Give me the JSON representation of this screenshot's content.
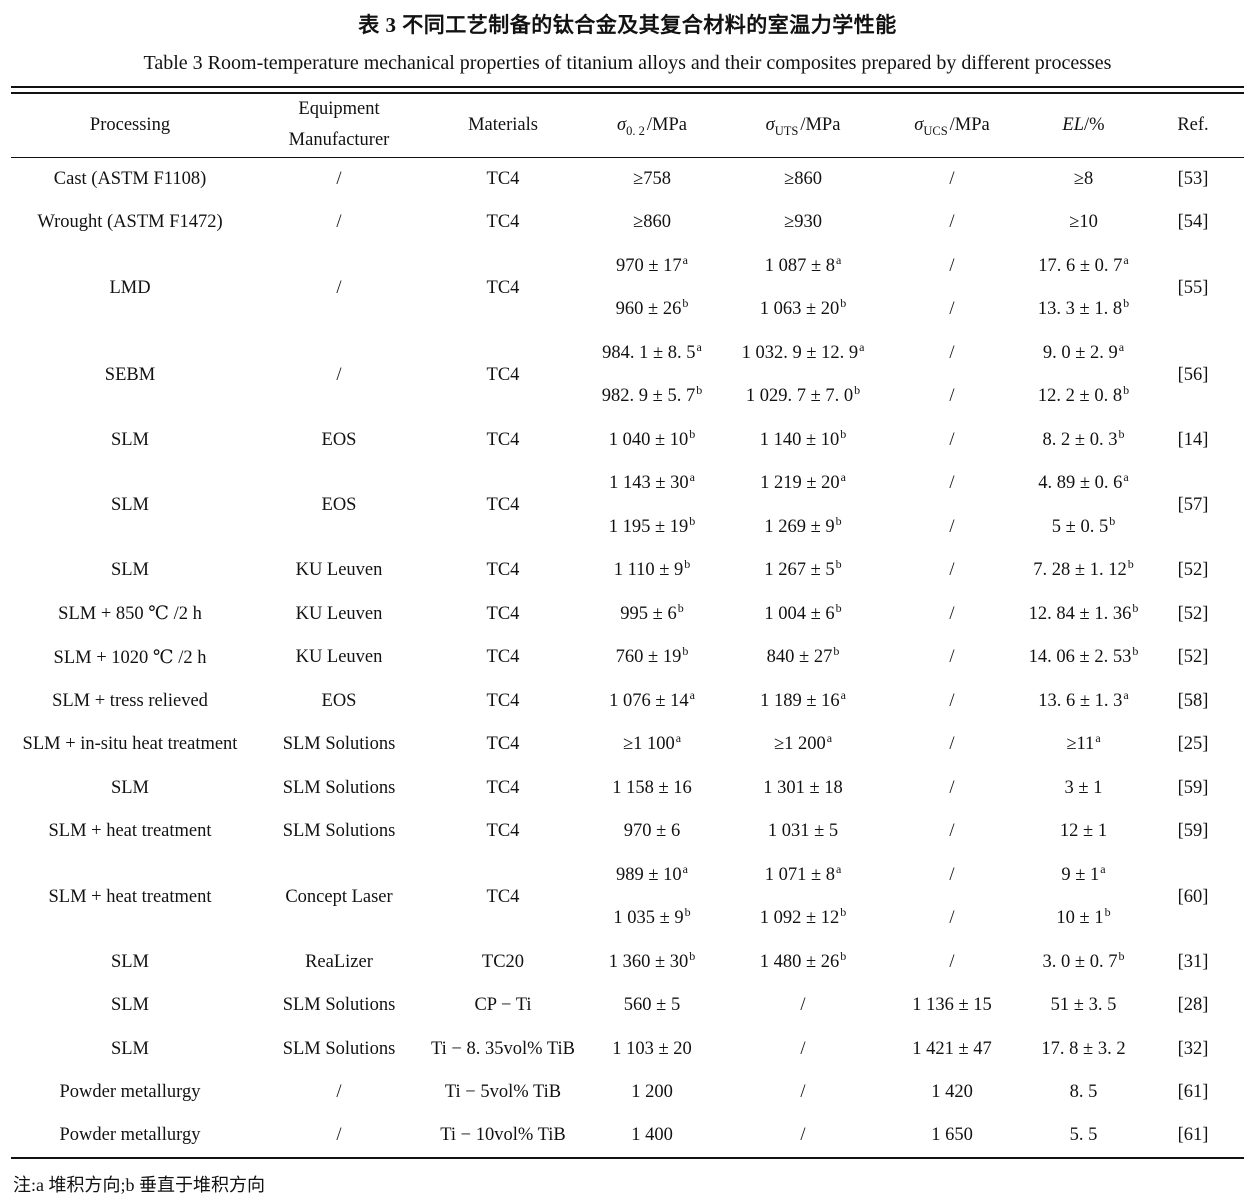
{
  "page": {
    "title_zh": "表 3  不同工艺制备的钛合金及其复合材料的室温力学性能",
    "title_en": "Table 3  Room-temperature mechanical properties of titanium alloys and their composites prepared by different processes",
    "footnote": "注:a 堆积方向;b 垂直于堆积方向"
  },
  "table": {
    "header": {
      "processing": "Processing",
      "equipment_line1": "Equipment",
      "equipment_line2": "Manufacturer",
      "materials": "Materials",
      "s02": {
        "sym": "σ",
        "sub": "0. 2",
        "unit": "/MPa"
      },
      "uts": {
        "sym": "σ",
        "sub": "UTS",
        "unit": "/MPa"
      },
      "ucs": {
        "sym": "σ",
        "sub": "UCS",
        "unit": "/MPa"
      },
      "el": {
        "sym": "EL",
        "unit": "/%"
      },
      "ref": "Ref."
    },
    "rows": [
      {
        "processing": "Cast (ASTM F1108)",
        "equipment": "/",
        "materials": "TC4",
        "s02": [
          "≥758"
        ],
        "uts": [
          "≥860"
        ],
        "ucs": [
          "/"
        ],
        "el": [
          "≥8"
        ],
        "ref": "[53]"
      },
      {
        "processing": "Wrought (ASTM F1472)",
        "equipment": "/",
        "materials": "TC4",
        "s02": [
          "≥860"
        ],
        "uts": [
          "≥930"
        ],
        "ucs": [
          "/"
        ],
        "el": [
          "≥10"
        ],
        "ref": "[54]"
      },
      {
        "processing": "LMD",
        "equipment": "/",
        "materials": "TC4",
        "s02": [
          "970 ± 17^a",
          "960 ± 26^b"
        ],
        "uts": [
          "1 087 ± 8^a",
          "1 063 ± 20^b"
        ],
        "ucs": [
          "/",
          "/"
        ],
        "el": [
          "17. 6 ± 0. 7^a",
          "13. 3 ± 1. 8^b"
        ],
        "ref": "[55]"
      },
      {
        "processing": "SEBM",
        "equipment": "/",
        "materials": "TC4",
        "s02": [
          "984. 1 ± 8. 5^a",
          "982. 9 ± 5. 7^b"
        ],
        "uts": [
          "1 032. 9 ± 12. 9^a",
          "1 029. 7 ± 7. 0^b"
        ],
        "ucs": [
          "/",
          "/"
        ],
        "el": [
          "9. 0 ± 2. 9^a",
          "12. 2 ± 0. 8^b"
        ],
        "ref": "[56]"
      },
      {
        "processing": "SLM",
        "equipment": "EOS",
        "materials": "TC4",
        "s02": [
          "1 040 ± 10^b"
        ],
        "uts": [
          "1 140 ± 10^b"
        ],
        "ucs": [
          "/"
        ],
        "el": [
          "8. 2 ± 0. 3^b"
        ],
        "ref": "[14]"
      },
      {
        "processing": "SLM",
        "equipment": "EOS",
        "materials": "TC4",
        "s02": [
          "1 143 ± 30^a",
          "1 195 ± 19^b"
        ],
        "uts": [
          "1 219 ± 20^a",
          "1 269 ± 9^b"
        ],
        "ucs": [
          "/",
          "/"
        ],
        "el": [
          "4. 89 ± 0. 6^a",
          "5 ± 0. 5^b"
        ],
        "ref": "[57]"
      },
      {
        "processing": "SLM",
        "equipment": "KU Leuven",
        "materials": "TC4",
        "s02": [
          "1 110 ± 9^b"
        ],
        "uts": [
          "1 267 ± 5^b"
        ],
        "ucs": [
          "/"
        ],
        "el": [
          "7. 28 ± 1. 12^b"
        ],
        "ref": "[52]"
      },
      {
        "processing": "SLM + 850 ℃ /2 h",
        "equipment": "KU Leuven",
        "materials": "TC4",
        "s02": [
          "995 ± 6^b"
        ],
        "uts": [
          "1 004 ± 6^b"
        ],
        "ucs": [
          "/"
        ],
        "el": [
          "12. 84 ± 1. 36^b"
        ],
        "ref": "[52]"
      },
      {
        "processing": "SLM + 1020 ℃ /2 h",
        "equipment": "KU Leuven",
        "materials": "TC4",
        "s02": [
          "760 ± 19^b"
        ],
        "uts": [
          "840 ± 27^b"
        ],
        "ucs": [
          "/"
        ],
        "el": [
          "14. 06 ± 2. 53^b"
        ],
        "ref": "[52]"
      },
      {
        "processing": "SLM + tress relieved",
        "equipment": "EOS",
        "materials": "TC4",
        "s02": [
          "1 076 ± 14^a"
        ],
        "uts": [
          "1 189 ± 16^a"
        ],
        "ucs": [
          "/"
        ],
        "el": [
          "13. 6 ± 1. 3^a"
        ],
        "ref": "[58]"
      },
      {
        "processing": "SLM + in-situ heat treatment",
        "equipment": "SLM Solutions",
        "materials": "TC4",
        "s02": [
          "≥1 100^a"
        ],
        "uts": [
          "≥1 200^a"
        ],
        "ucs": [
          "/"
        ],
        "el": [
          "≥11^a"
        ],
        "ref": "[25]"
      },
      {
        "processing": "SLM",
        "equipment": "SLM Solutions",
        "materials": "TC4",
        "s02": [
          "1 158 ± 16"
        ],
        "uts": [
          "1 301 ± 18"
        ],
        "ucs": [
          "/"
        ],
        "el": [
          "3 ± 1"
        ],
        "ref": "[59]"
      },
      {
        "processing": "SLM + heat treatment",
        "equipment": "SLM Solutions",
        "materials": "TC4",
        "s02": [
          "970 ± 6"
        ],
        "uts": [
          "1 031 ± 5"
        ],
        "ucs": [
          "/"
        ],
        "el": [
          "12 ± 1"
        ],
        "ref": "[59]"
      },
      {
        "processing": "SLM + heat treatment",
        "equipment": "Concept Laser",
        "materials": "TC4",
        "s02": [
          "989 ± 10^a",
          "1 035 ± 9^b"
        ],
        "uts": [
          "1 071 ± 8^a",
          "1 092 ± 12^b"
        ],
        "ucs": [
          "/",
          "/"
        ],
        "el": [
          "9 ± 1^a",
          "10 ± 1^b"
        ],
        "ref": "[60]"
      },
      {
        "processing": "SLM",
        "equipment": "ReaLizer",
        "materials": "TC20",
        "s02": [
          "1 360 ± 30^b"
        ],
        "uts": [
          "1 480 ± 26^b"
        ],
        "ucs": [
          "/"
        ],
        "el": [
          "3. 0 ± 0. 7^b"
        ],
        "ref": "[31]"
      },
      {
        "processing": "SLM",
        "equipment": "SLM Solutions",
        "materials": "CP − Ti",
        "s02": [
          "560 ± 5"
        ],
        "uts": [
          "/"
        ],
        "ucs": [
          "1 136 ± 15"
        ],
        "el": [
          "51 ± 3. 5"
        ],
        "ref": "[28]"
      },
      {
        "processing": "SLM",
        "equipment": "SLM Solutions",
        "materials": "Ti − 8. 35vol% TiB",
        "s02": [
          "1 103 ± 20"
        ],
        "uts": [
          "/"
        ],
        "ucs": [
          "1 421 ± 47"
        ],
        "el": [
          "17. 8 ± 3. 2"
        ],
        "ref": "[32]"
      },
      {
        "processing": "Powder metallurgy",
        "equipment": "/",
        "materials": "Ti − 5vol% TiB",
        "s02": [
          "1 200"
        ],
        "uts": [
          "/"
        ],
        "ucs": [
          "1 420"
        ],
        "el": [
          "8. 5"
        ],
        "ref": "[61]"
      },
      {
        "processing": "Powder metallurgy",
        "equipment": "/",
        "materials": "Ti − 10vol% TiB",
        "s02": [
          "1 400"
        ],
        "uts": [
          "/"
        ],
        "ucs": [
          "1 650"
        ],
        "el": [
          "5. 5"
        ],
        "ref": "[61]"
      }
    ]
  }
}
